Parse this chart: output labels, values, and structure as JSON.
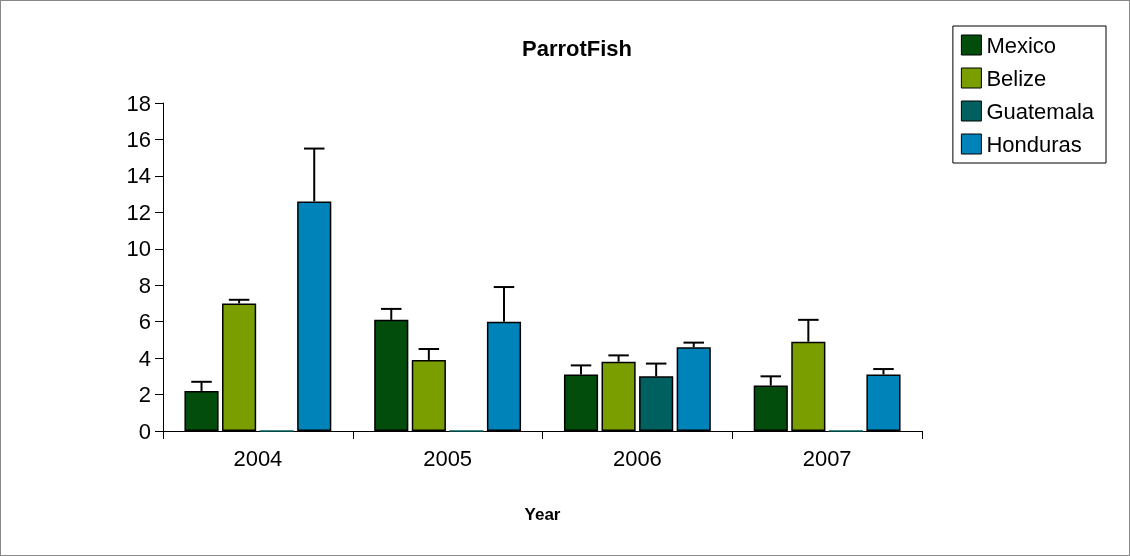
{
  "chart_data": {
    "type": "bar",
    "title": "ParrotFish",
    "xlabel": "Year",
    "categories": [
      "2004",
      "2005",
      "2006",
      "2007"
    ],
    "series": [
      {
        "name": "Mexico",
        "color": "#024d0c",
        "values": [
          2.2,
          6.1,
          3.1,
          2.5
        ],
        "errors": [
          [
            2.2,
            2.7
          ],
          [
            6.1,
            6.7
          ],
          [
            3.1,
            3.6
          ],
          [
            2.5,
            3.0
          ]
        ]
      },
      {
        "name": "Belize",
        "color": "#7a9e00",
        "values": [
          7.0,
          3.9,
          3.8,
          4.9
        ],
        "errors": [
          [
            7.0,
            7.2
          ],
          [
            3.9,
            4.5
          ],
          [
            3.8,
            4.15
          ],
          [
            4.9,
            6.1
          ]
        ]
      },
      {
        "name": "Guatemala",
        "color": "#00605f",
        "values": [
          0,
          0,
          3.0,
          0
        ],
        "errors": [
          null,
          null,
          [
            3.0,
            3.7
          ],
          null
        ]
      },
      {
        "name": "Honduras",
        "color": "#0083b8",
        "values": [
          12.6,
          6.0,
          4.6,
          3.1
        ],
        "errors": [
          [
            12.6,
            15.5
          ],
          [
            6.0,
            7.9
          ],
          [
            4.6,
            4.85
          ],
          [
            3.1,
            3.4
          ]
        ]
      }
    ],
    "ylim": [
      0,
      18
    ],
    "yticks": [
      0,
      2,
      4,
      6,
      8,
      10,
      12,
      14,
      16,
      18
    ],
    "grid": false,
    "legend": "top right"
  }
}
